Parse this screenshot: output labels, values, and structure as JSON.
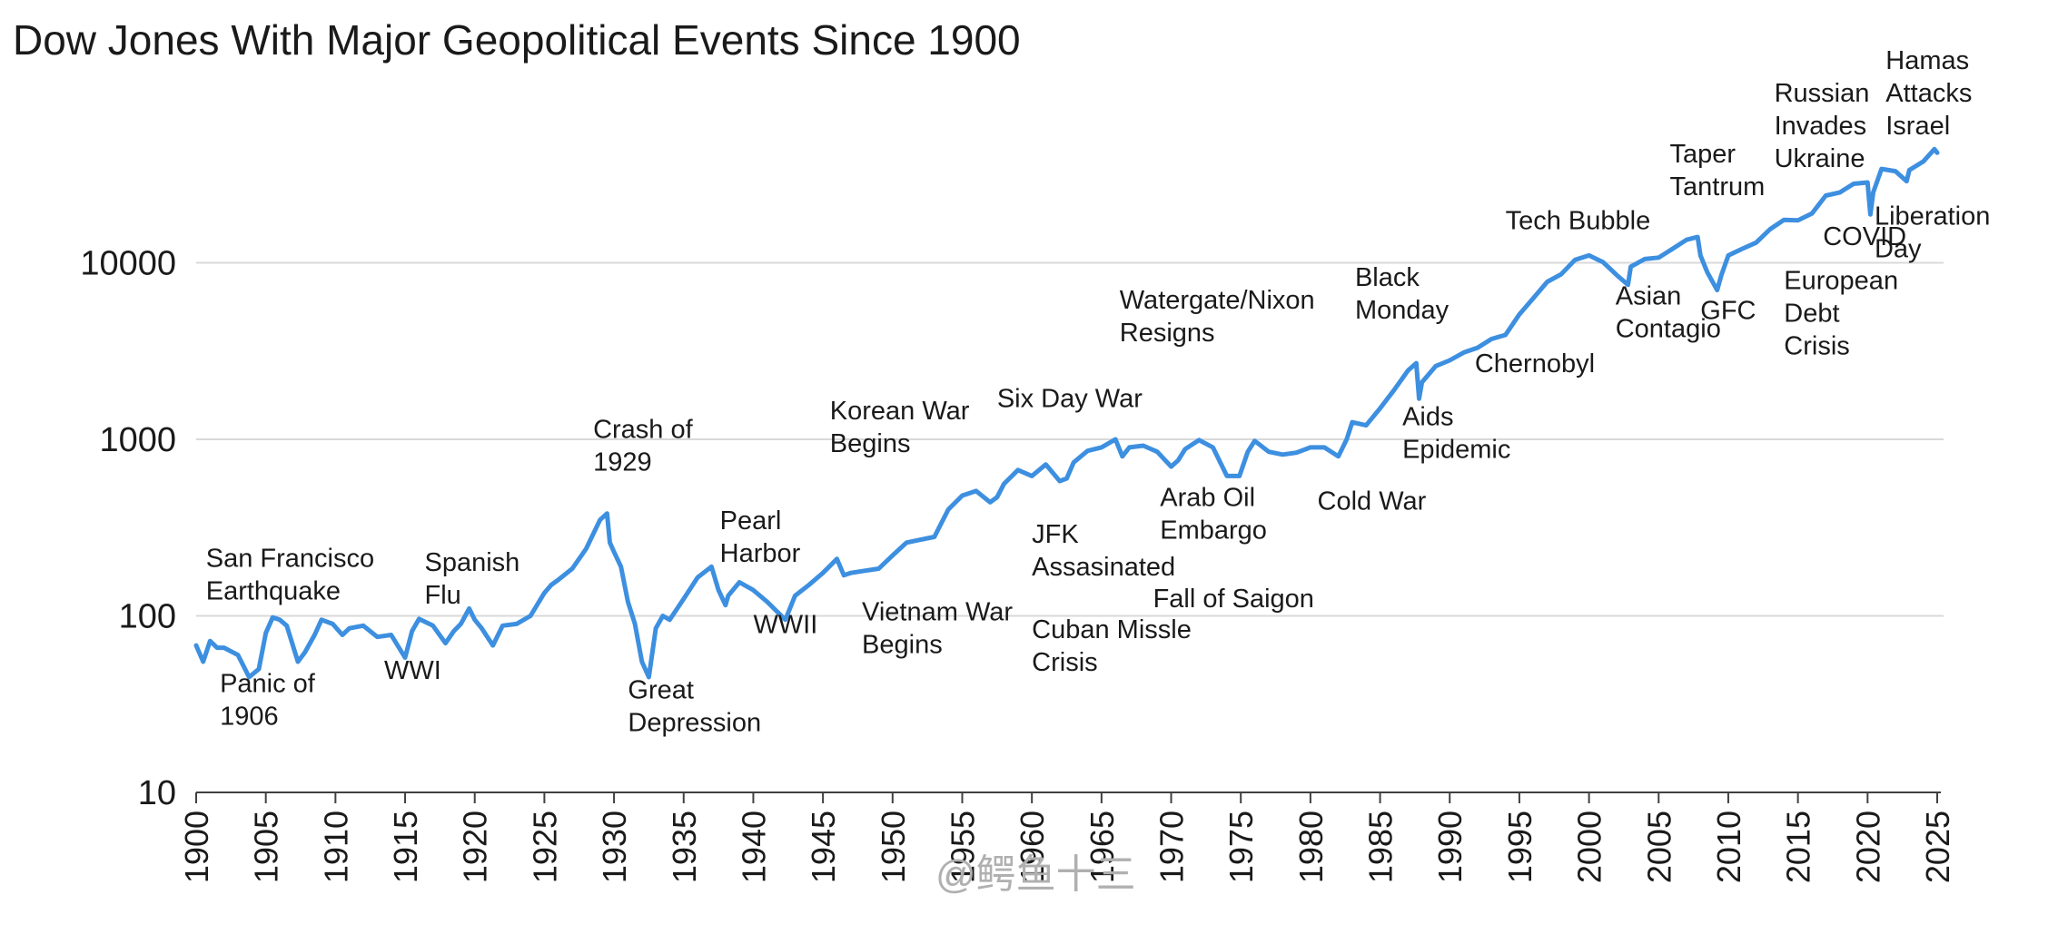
{
  "watermark": "@鳄鱼十三",
  "chart_data": {
    "type": "line",
    "title": "Dow Jones With Major Geopolitical Events Since 1900",
    "xlabel": "",
    "ylabel": "",
    "yscale": "log",
    "xlim": [
      1900,
      2025
    ],
    "ylim": [
      10,
      60000
    ],
    "grid": "horizontal",
    "legend": "none",
    "line_color": "#3d8fe0",
    "grid_color": "#d9d9d9",
    "ytick_values": [
      10,
      100,
      1000,
      10000
    ],
    "ytick_labels": [
      "10",
      "100",
      "1000",
      "10000"
    ],
    "xtick_values": [
      1900,
      1905,
      1910,
      1915,
      1920,
      1925,
      1930,
      1935,
      1940,
      1945,
      1950,
      1955,
      1960,
      1965,
      1970,
      1975,
      1980,
      1985,
      1990,
      1995,
      2000,
      2005,
      2010,
      2015,
      2020,
      2025
    ],
    "xtick_labels": [
      "1900",
      "1905",
      "1910",
      "1915",
      "1920",
      "1925",
      "1930",
      "1935",
      "1940",
      "1945",
      "1950",
      "1955",
      "1960",
      "1965",
      "1970",
      "1975",
      "1980",
      "1985",
      "1990",
      "1995",
      "2000",
      "2005",
      "2010",
      "2015",
      "2020",
      "2025"
    ],
    "series": [
      {
        "x": [
          1900,
          1900.5,
          1901,
          1901.5,
          1902,
          1903,
          1903.8,
          1904.5,
          1905,
          1905.5,
          1906,
          1906.5,
          1907.3,
          1907.8,
          1908.5,
          1909,
          1909.8,
          1910.5,
          1911,
          1912,
          1913,
          1914,
          1915,
          1915.5,
          1916,
          1917,
          1917.9,
          1918.5,
          1919,
          1919.6,
          1920,
          1920.5,
          1921.3,
          1922,
          1923,
          1924,
          1925,
          1925.5,
          1926,
          1927,
          1928,
          1929,
          1929.5,
          1929.7,
          1930,
          1930.5,
          1931,
          1931.5,
          1932,
          1932.5,
          1933,
          1933.5,
          1934,
          1935,
          1936,
          1937,
          1937.5,
          1938,
          1938.2,
          1939,
          1940,
          1941,
          1942.3,
          1943,
          1944,
          1945,
          1946,
          1946.5,
          1947,
          1948,
          1949,
          1950,
          1951,
          1952,
          1953,
          1954,
          1955,
          1956,
          1957,
          1957.5,
          1958,
          1959,
          1960,
          1961,
          1962,
          1962.5,
          1963,
          1964,
          1965,
          1966,
          1966.5,
          1967,
          1968,
          1969,
          1970,
          1970.5,
          1971,
          1972,
          1973,
          1974,
          1974.9,
          1975.5,
          1976,
          1977,
          1978,
          1979,
          1980,
          1981,
          1982,
          1982.6,
          1983,
          1984,
          1985,
          1986,
          1987,
          1987.6,
          1987.8,
          1988,
          1989,
          1990,
          1991,
          1992,
          1993,
          1994,
          1995,
          1996,
          1997,
          1998,
          1999,
          2000,
          2001,
          2002,
          2002.8,
          2003,
          2004,
          2005,
          2006,
          2007,
          2007.8,
          2008,
          2008.5,
          2009.2,
          2009.5,
          2010,
          2011,
          2012,
          2013,
          2014,
          2015,
          2016,
          2017,
          2018,
          2019,
          2020,
          2020.2,
          2020.4,
          2021,
          2022,
          2022.8,
          2023,
          2024,
          2024.8,
          2025
        ],
        "values": [
          68,
          55,
          72,
          66,
          66,
          60,
          45,
          50,
          80,
          98,
          95,
          88,
          55,
          62,
          78,
          95,
          90,
          78,
          85,
          88,
          76,
          78,
          58,
          82,
          96,
          88,
          70,
          82,
          90,
          110,
          95,
          85,
          68,
          88,
          90,
          100,
          135,
          150,
          160,
          185,
          240,
          350,
          380,
          260,
          230,
          190,
          120,
          90,
          55,
          45,
          85,
          100,
          95,
          125,
          165,
          190,
          140,
          115,
          130,
          155,
          140,
          120,
          95,
          130,
          150,
          175,
          210,
          170,
          175,
          180,
          185,
          220,
          260,
          270,
          280,
          400,
          480,
          510,
          440,
          470,
          560,
          670,
          620,
          720,
          580,
          600,
          740,
          860,
          900,
          1000,
          800,
          900,
          920,
          850,
          700,
          760,
          880,
          990,
          900,
          620,
          620,
          850,
          980,
          850,
          820,
          840,
          900,
          900,
          800,
          1000,
          1250,
          1200,
          1500,
          1900,
          2450,
          2700,
          1700,
          2100,
          2600,
          2800,
          3100,
          3300,
          3700,
          3900,
          5100,
          6300,
          7800,
          8600,
          10400,
          11000,
          10100,
          8500,
          7500,
          9500,
          10500,
          10700,
          12000,
          13500,
          14000,
          11000,
          8800,
          7000,
          8500,
          11000,
          12000,
          13000,
          15500,
          17500,
          17400,
          19000,
          24000,
          25000,
          28000,
          28500,
          18800,
          25000,
          34000,
          33000,
          29000,
          33500,
          37500,
          44000,
          42000
        ]
      }
    ],
    "annotations": [
      {
        "lines": [
          "San Francisco",
          "Earthquake"
        ],
        "x": 1900.7,
        "y": 190,
        "anchor": "start"
      },
      {
        "lines": [
          "Panic of",
          "1906"
        ],
        "x": 1901.7,
        "y": 37,
        "anchor": "start"
      },
      {
        "lines": [
          "WWI"
        ],
        "x": 1913.5,
        "y": 44,
        "anchor": "start"
      },
      {
        "lines": [
          "Spanish",
          "Flu"
        ],
        "x": 1916.4,
        "y": 180,
        "anchor": "start"
      },
      {
        "lines": [
          "Crash of",
          "1929"
        ],
        "x": 1928.5,
        "y": 1020,
        "anchor": "start"
      },
      {
        "lines": [
          "Great",
          "Depression"
        ],
        "x": 1931,
        "y": 34,
        "anchor": "start"
      },
      {
        "lines": [
          "Pearl",
          "Harbor"
        ],
        "x": 1937.6,
        "y": 310,
        "anchor": "start"
      },
      {
        "lines": [
          "WWII"
        ],
        "x": 1940,
        "y": 80,
        "anchor": "start"
      },
      {
        "lines": [
          "Korean War",
          "Begins"
        ],
        "x": 1945.5,
        "y": 1300,
        "anchor": "start"
      },
      {
        "lines": [
          "Vietnam War",
          "Begins"
        ],
        "x": 1947.8,
        "y": 94,
        "anchor": "start"
      },
      {
        "lines": [
          "Six Day War"
        ],
        "x": 1957.5,
        "y": 1520,
        "anchor": "start"
      },
      {
        "lines": [
          "JFK",
          "Assasinated"
        ],
        "x": 1960,
        "y": 260,
        "anchor": "start"
      },
      {
        "lines": [
          "Cuban Missle",
          "Crisis"
        ],
        "x": 1960,
        "y": 75,
        "anchor": "start"
      },
      {
        "lines": [
          "Watergate/Nixon",
          "Resigns"
        ],
        "x": 1966.3,
        "y": 5500,
        "anchor": "start"
      },
      {
        "lines": [
          "Arab Oil",
          "Embargo"
        ],
        "x": 1969.2,
        "y": 420,
        "anchor": "start"
      },
      {
        "lines": [
          "Fall of Saigon"
        ],
        "x": 1968.7,
        "y": 112,
        "anchor": "start"
      },
      {
        "lines": [
          "Cold War"
        ],
        "x": 1980.5,
        "y": 400,
        "anchor": "start"
      },
      {
        "lines": [
          "Black",
          "Monday"
        ],
        "x": 1983.2,
        "y": 7400,
        "anchor": "start"
      },
      {
        "lines": [
          "Aids",
          "Epidemic"
        ],
        "x": 1986.6,
        "y": 1200,
        "anchor": "start"
      },
      {
        "lines": [
          "Chernobyl"
        ],
        "x": 1991.8,
        "y": 2400,
        "anchor": "start"
      },
      {
        "lines": [
          "Tech Bubble"
        ],
        "x": 1994,
        "y": 15500,
        "anchor": "start"
      },
      {
        "lines": [
          "Asian",
          "Contagio"
        ],
        "x": 2001.9,
        "y": 5800,
        "anchor": "start"
      },
      {
        "lines": [
          "Taper",
          "Tantrum"
        ],
        "x": 2005.8,
        "y": 37000,
        "anchor": "start"
      },
      {
        "lines": [
          "GFC"
        ],
        "x": 2008,
        "y": 4800,
        "anchor": "start"
      },
      {
        "lines": [
          "Russian",
          "Invades",
          "Ukraine"
        ],
        "x": 2013.3,
        "y": 82000,
        "anchor": "start"
      },
      {
        "lines": [
          "European",
          "Debt",
          "Crisis"
        ],
        "x": 2014,
        "y": 7100,
        "anchor": "start"
      },
      {
        "lines": [
          "COVID"
        ],
        "x": 2016.8,
        "y": 12600,
        "anchor": "start"
      },
      {
        "lines": [
          "Hamas",
          "Attacks",
          "Israel"
        ],
        "x": 2021.3,
        "y": 125000,
        "anchor": "start"
      },
      {
        "lines": [
          "Liberation",
          "Day"
        ],
        "x": 2020.5,
        "y": 16400,
        "anchor": "start"
      }
    ]
  }
}
